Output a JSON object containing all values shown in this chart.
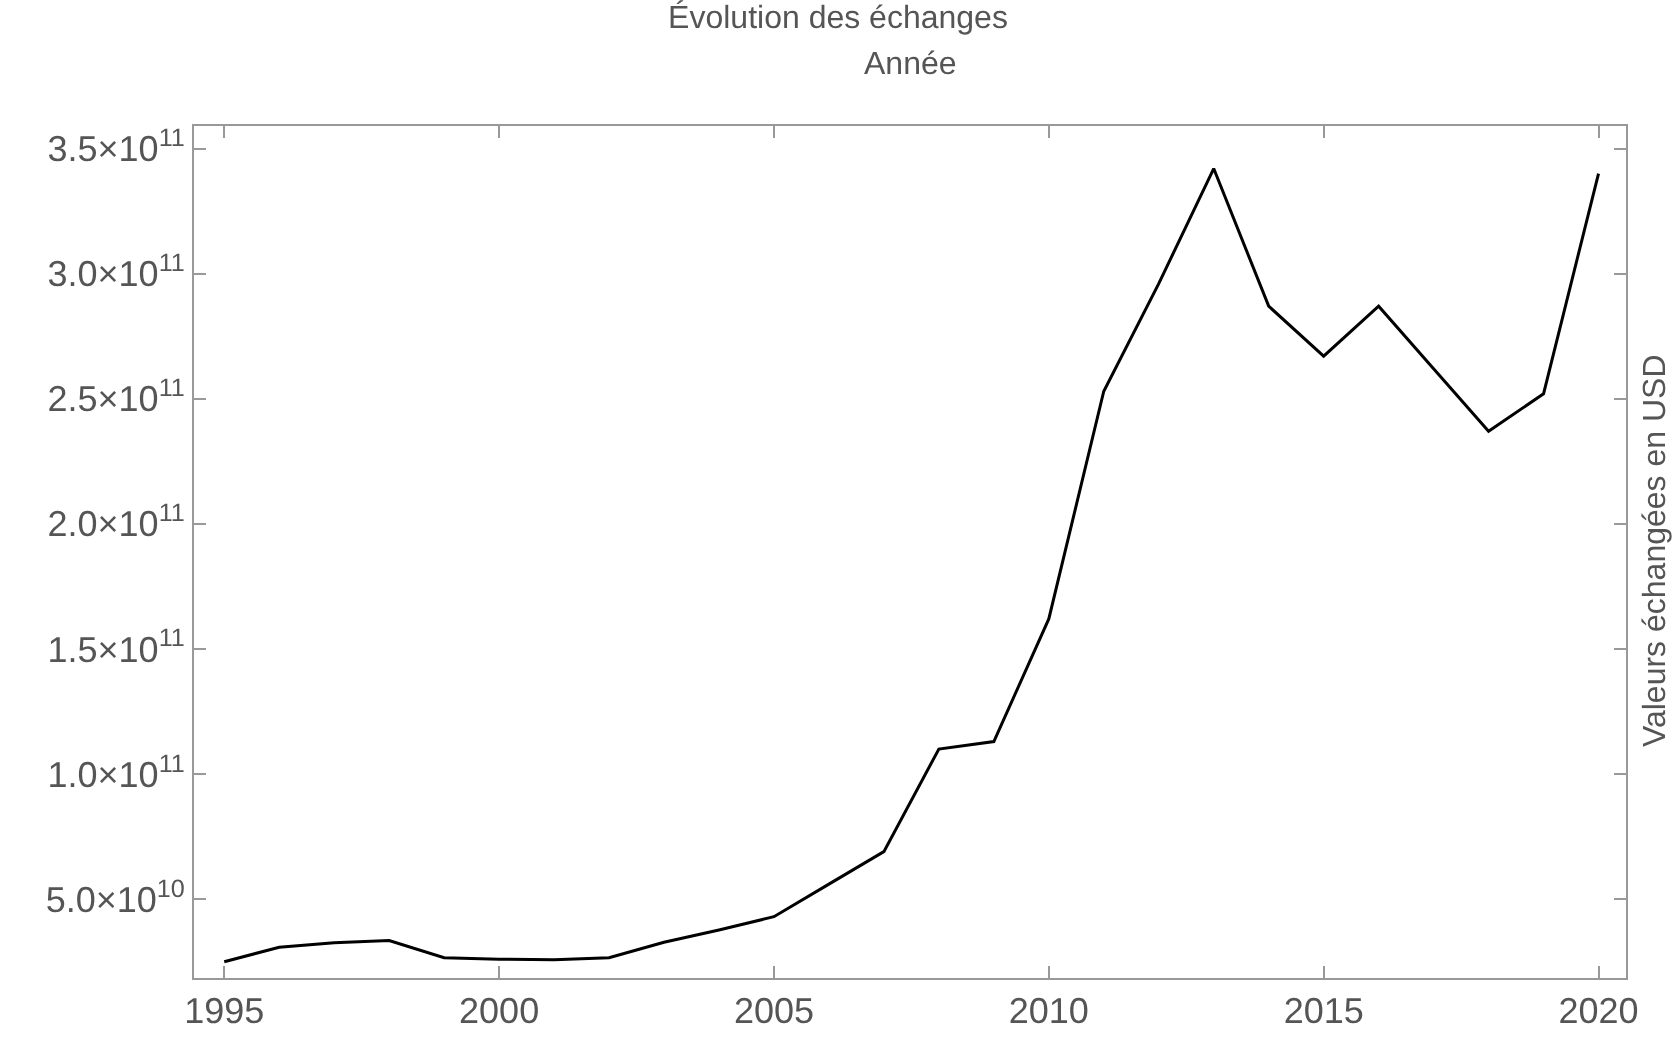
{
  "chart_data": {
    "type": "line",
    "title": "Évolution des échanges",
    "xlabel": "Année",
    "ylabel": "Valeurs échangées en USD",
    "x": [
      1995,
      1996,
      1997,
      1998,
      1999,
      2000,
      2001,
      2002,
      2003,
      2004,
      2005,
      2006,
      2007,
      2008,
      2009,
      2010,
      2011,
      2012,
      2013,
      2014,
      2015,
      2016,
      2017,
      2018,
      2019,
      2020
    ],
    "series": [
      {
        "color": "#000000",
        "values": [
          25000000000.0,
          30800000000.0,
          32600000000.0,
          33500000000.0,
          26600000000.0,
          26000000000.0,
          25800000000.0,
          26600000000.0,
          32800000000.0,
          37700000000.0,
          43000000000.0,
          56000000000.0,
          69000000000.0,
          110000000000.0,
          113000000000.0,
          162000000000.0,
          253000000000.0,
          296000000000.0,
          342000000000.0,
          287000000000.0,
          267000000000.0,
          287000000000.0,
          262000000000.0,
          237000000000.0,
          252000000000.0,
          340000000000.0
        ]
      }
    ],
    "xlim": [
      1994.45,
      2020.5
    ],
    "xticks": [
      1995,
      2000,
      2005,
      2010,
      2015,
      2020
    ],
    "ylim": [
      18500000000.0,
      359000000000.0
    ],
    "yticks": [
      {
        "value": 50000000000.0,
        "label": "5.0×10$^{10}$"
      },
      {
        "value": 100000000000.0,
        "label": "1.0×10$^{11}$"
      },
      {
        "value": 150000000000.0,
        "label": "1.5×10$^{11}$"
      },
      {
        "value": 200000000000.0,
        "label": "2.0×10$^{11}$"
      },
      {
        "value": 250000000000.0,
        "label": "2.5×10$^{11}$"
      },
      {
        "value": 300000000000.0,
        "label": "3.0×10$^{11}$"
      },
      {
        "value": 350000000000.0,
        "label": "3.5×10$^{11}$"
      }
    ],
    "marker": "none",
    "line_style": "solid"
  }
}
